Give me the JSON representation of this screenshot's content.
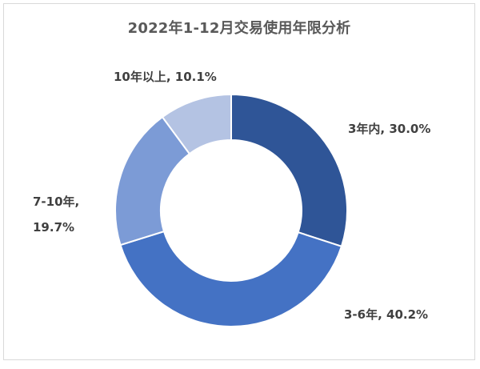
{
  "chart_data": {
    "type": "pie",
    "title": "2022年1-12月交易使用年限分析",
    "donut": true,
    "legend": "none",
    "slices": [
      {
        "label": "3年内",
        "value": 30.0,
        "display": "3年内, 30.0%",
        "color": "#2f5597"
      },
      {
        "label": "3-6年",
        "value": 40.2,
        "display": "3-6年, 40.2%",
        "color": "#4472c4"
      },
      {
        "label": "7-10年",
        "value": 19.7,
        "display_line1": "7-10年,",
        "display_line2": "19.7%",
        "color": "#7c9bd6"
      },
      {
        "label": "10年以上",
        "value": 10.1,
        "display": "10年以上, 10.1%",
        "color": "#b4c3e3"
      }
    ]
  }
}
